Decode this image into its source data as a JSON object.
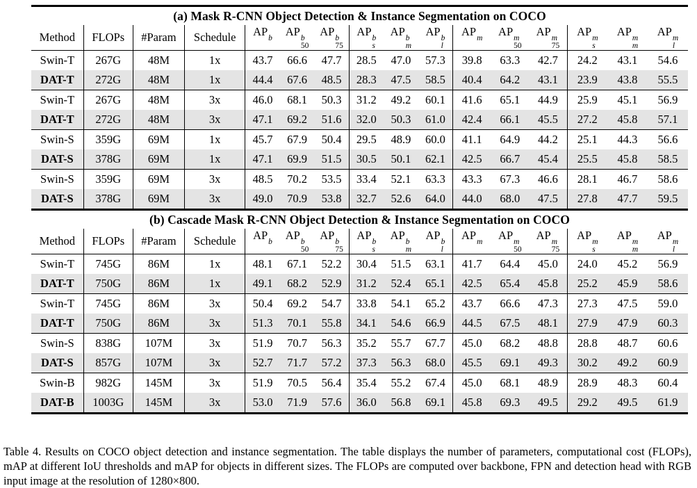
{
  "colors": {
    "background": "#ffffff",
    "rule": "#000000",
    "highlight_row": "#e4e4e4"
  },
  "caption": "Table 4. Results on COCO object detection and instance segmentation. The table displays the number of parameters, computational cost (FLOPs), mAP at different IoU thresholds and mAP for objects in different sizes. The FLOPs are computed over backbone, FPN and detection head with RGB input image at the resolution of 1280×800.",
  "tables": [
    {
      "title": "(a) Mask R-CNN Object Detection & Instance Segmentation on COCO",
      "columns": [
        {
          "label": "Method"
        },
        {
          "label": "FLOPs"
        },
        {
          "label": "#Param"
        },
        {
          "label": "Schedule"
        },
        {
          "base": "AP",
          "sup": "b",
          "sub": ""
        },
        {
          "base": "AP",
          "sup": "b",
          "sub": "50"
        },
        {
          "base": "AP",
          "sup": "b",
          "sub": "75"
        },
        {
          "base": "AP",
          "sup": "b",
          "sub": "s"
        },
        {
          "base": "AP",
          "sup": "b",
          "sub": "m"
        },
        {
          "base": "AP",
          "sup": "b",
          "sub": "l"
        },
        {
          "base": "AP",
          "sup": "m",
          "sub": ""
        },
        {
          "base": "AP",
          "sup": "m",
          "sub": "50"
        },
        {
          "base": "AP",
          "sup": "m",
          "sub": "75"
        },
        {
          "base": "AP",
          "sup": "m",
          "sub": "s"
        },
        {
          "base": "AP",
          "sup": "m",
          "sub": "m"
        },
        {
          "base": "AP",
          "sup": "m",
          "sub": "l"
        }
      ],
      "rows": [
        {
          "method": "Swin-T",
          "flops": "267G",
          "params": "48M",
          "schedule": "1x",
          "highlight": false,
          "values": [
            "43.7",
            "66.6",
            "47.7",
            "28.5",
            "47.0",
            "57.3",
            "39.8",
            "63.3",
            "42.7",
            "24.2",
            "43.1",
            "54.6"
          ]
        },
        {
          "method": "DAT-T",
          "flops": "272G",
          "params": "48M",
          "schedule": "1x",
          "highlight": true,
          "values": [
            "44.4",
            "67.6",
            "48.5",
            "28.3",
            "47.5",
            "58.5",
            "40.4",
            "64.2",
            "43.1",
            "23.9",
            "43.8",
            "55.5"
          ]
        },
        {
          "method": "Swin-T",
          "flops": "267G",
          "params": "48M",
          "schedule": "3x",
          "highlight": false,
          "values": [
            "46.0",
            "68.1",
            "50.3",
            "31.2",
            "49.2",
            "60.1",
            "41.6",
            "65.1",
            "44.9",
            "25.9",
            "45.1",
            "56.9"
          ]
        },
        {
          "method": "DAT-T",
          "flops": "272G",
          "params": "48M",
          "schedule": "3x",
          "highlight": true,
          "values": [
            "47.1",
            "69.2",
            "51.6",
            "32.0",
            "50.3",
            "61.0",
            "42.4",
            "66.1",
            "45.5",
            "27.2",
            "45.8",
            "57.1"
          ]
        },
        {
          "method": "Swin-S",
          "flops": "359G",
          "params": "69M",
          "schedule": "1x",
          "highlight": false,
          "values": [
            "45.7",
            "67.9",
            "50.4",
            "29.5",
            "48.9",
            "60.0",
            "41.1",
            "64.9",
            "44.2",
            "25.1",
            "44.3",
            "56.6"
          ]
        },
        {
          "method": "DAT-S",
          "flops": "378G",
          "params": "69M",
          "schedule": "1x",
          "highlight": true,
          "values": [
            "47.1",
            "69.9",
            "51.5",
            "30.5",
            "50.1",
            "62.1",
            "42.5",
            "66.7",
            "45.4",
            "25.5",
            "45.8",
            "58.5"
          ]
        },
        {
          "method": "Swin-S",
          "flops": "359G",
          "params": "69M",
          "schedule": "3x",
          "highlight": false,
          "values": [
            "48.5",
            "70.2",
            "53.5",
            "33.4",
            "52.1",
            "63.3",
            "43.3",
            "67.3",
            "46.6",
            "28.1",
            "46.7",
            "58.6"
          ]
        },
        {
          "method": "DAT-S",
          "flops": "378G",
          "params": "69M",
          "schedule": "3x",
          "highlight": true,
          "values": [
            "49.0",
            "70.9",
            "53.8",
            "32.7",
            "52.6",
            "64.0",
            "44.0",
            "68.0",
            "47.5",
            "27.8",
            "47.7",
            "59.5"
          ]
        }
      ]
    },
    {
      "title": "(b) Cascade Mask R-CNN Object Detection & Instance Segmentation on COCO",
      "columns": [
        {
          "label": "Method"
        },
        {
          "label": "FLOPs"
        },
        {
          "label": "#Param"
        },
        {
          "label": "Schedule"
        },
        {
          "base": "AP",
          "sup": "b",
          "sub": ""
        },
        {
          "base": "AP",
          "sup": "b",
          "sub": "50"
        },
        {
          "base": "AP",
          "sup": "b",
          "sub": "75"
        },
        {
          "base": "AP",
          "sup": "b",
          "sub": "s"
        },
        {
          "base": "AP",
          "sup": "b",
          "sub": "m"
        },
        {
          "base": "AP",
          "sup": "b",
          "sub": "l"
        },
        {
          "base": "AP",
          "sup": "m",
          "sub": ""
        },
        {
          "base": "AP",
          "sup": "m",
          "sub": "50"
        },
        {
          "base": "AP",
          "sup": "m",
          "sub": "75"
        },
        {
          "base": "AP",
          "sup": "m",
          "sub": "s"
        },
        {
          "base": "AP",
          "sup": "m",
          "sub": "m"
        },
        {
          "base": "AP",
          "sup": "m",
          "sub": "l"
        }
      ],
      "rows": [
        {
          "method": "Swin-T",
          "flops": "745G",
          "params": "86M",
          "schedule": "1x",
          "highlight": false,
          "values": [
            "48.1",
            "67.1",
            "52.2",
            "30.4",
            "51.5",
            "63.1",
            "41.7",
            "64.4",
            "45.0",
            "24.0",
            "45.2",
            "56.9"
          ]
        },
        {
          "method": "DAT-T",
          "flops": "750G",
          "params": "86M",
          "schedule": "1x",
          "highlight": true,
          "values": [
            "49.1",
            "68.2",
            "52.9",
            "31.2",
            "52.4",
            "65.1",
            "42.5",
            "65.4",
            "45.8",
            "25.2",
            "45.9",
            "58.6"
          ]
        },
        {
          "method": "Swin-T",
          "flops": "745G",
          "params": "86M",
          "schedule": "3x",
          "highlight": false,
          "values": [
            "50.4",
            "69.2",
            "54.7",
            "33.8",
            "54.1",
            "65.2",
            "43.7",
            "66.6",
            "47.3",
            "27.3",
            "47.5",
            "59.0"
          ]
        },
        {
          "method": "DAT-T",
          "flops": "750G",
          "params": "86M",
          "schedule": "3x",
          "highlight": true,
          "values": [
            "51.3",
            "70.1",
            "55.8",
            "34.1",
            "54.6",
            "66.9",
            "44.5",
            "67.5",
            "48.1",
            "27.9",
            "47.9",
            "60.3"
          ]
        },
        {
          "method": "Swin-S",
          "flops": "838G",
          "params": "107M",
          "schedule": "3x",
          "highlight": false,
          "values": [
            "51.9",
            "70.7",
            "56.3",
            "35.2",
            "55.7",
            "67.7",
            "45.0",
            "68.2",
            "48.8",
            "28.8",
            "48.7",
            "60.6"
          ]
        },
        {
          "method": "DAT-S",
          "flops": "857G",
          "params": "107M",
          "schedule": "3x",
          "highlight": true,
          "values": [
            "52.7",
            "71.7",
            "57.2",
            "37.3",
            "56.3",
            "68.0",
            "45.5",
            "69.1",
            "49.3",
            "30.2",
            "49.2",
            "60.9"
          ]
        },
        {
          "method": "Swin-B",
          "flops": "982G",
          "params": "145M",
          "schedule": "3x",
          "highlight": false,
          "values": [
            "51.9",
            "70.5",
            "56.4",
            "35.4",
            "55.2",
            "67.4",
            "45.0",
            "68.1",
            "48.9",
            "28.9",
            "48.3",
            "60.4"
          ]
        },
        {
          "method": "DAT-B",
          "flops": "1003G",
          "params": "145M",
          "schedule": "3x",
          "highlight": true,
          "values": [
            "53.0",
            "71.9",
            "57.6",
            "36.0",
            "56.8",
            "69.1",
            "45.8",
            "69.3",
            "49.5",
            "29.2",
            "49.5",
            "61.9"
          ]
        }
      ]
    }
  ]
}
